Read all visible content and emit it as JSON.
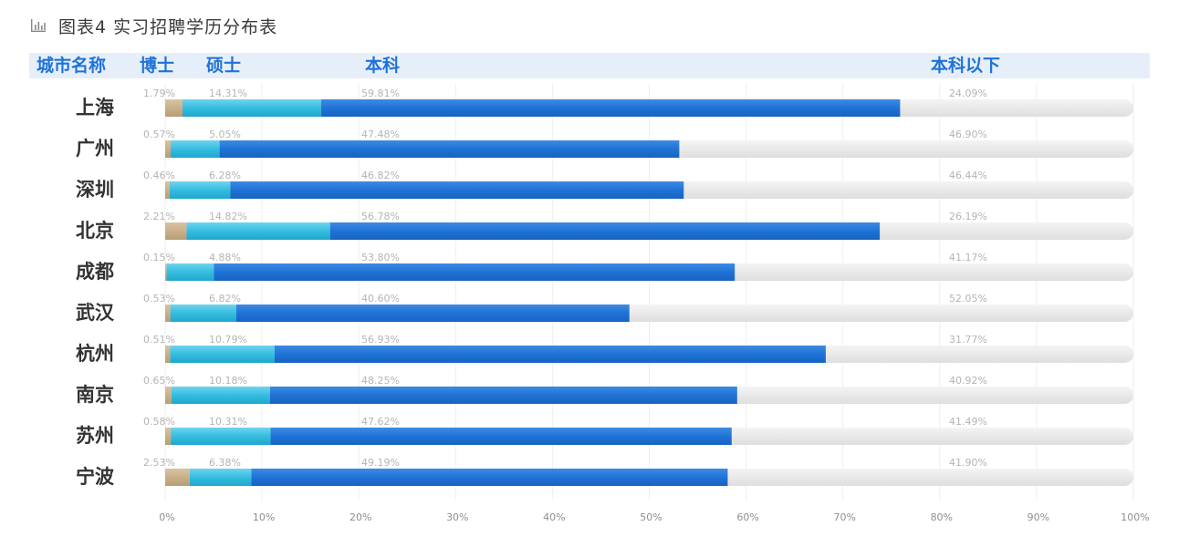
{
  "title": "图表4 实习招聘学历分布表",
  "icon": "bar-chart-icon",
  "headers": {
    "city": "城市名称",
    "phd": "博士",
    "master": "硕士",
    "bachelor": "本科",
    "below": "本科以下"
  },
  "colors": {
    "phd": "#c9b08a",
    "master": "#35bde0",
    "bachelor": "#1f73d6",
    "below": "#e9e9e9",
    "header_text": "#1f73d6",
    "header_band": "#e6eefa"
  },
  "chart_data": {
    "type": "bar",
    "orientation": "horizontal",
    "stacked": true,
    "title": "图表4 实习招聘学历分布表",
    "xlim": [
      0,
      100
    ],
    "xticks": [
      "0%",
      "10%",
      "20%",
      "30%",
      "40%",
      "50%",
      "60%",
      "70%",
      "80%",
      "90%",
      "100%"
    ],
    "categories": [
      "上海",
      "广州",
      "深圳",
      "北京",
      "成都",
      "武汉",
      "杭州",
      "南京",
      "苏州",
      "宁波"
    ],
    "series": [
      {
        "name": "博士",
        "values": [
          1.79,
          0.57,
          0.46,
          2.21,
          0.15,
          0.53,
          0.51,
          0.65,
          0.58,
          2.53
        ],
        "labels": [
          "1.79%",
          "0.57%",
          "0.46%",
          "2.21%",
          "0.15%",
          "0.53%",
          "0.51%",
          "0.65%",
          "0.58%",
          "2.53%"
        ]
      },
      {
        "name": "硕士",
        "values": [
          14.31,
          5.05,
          6.28,
          14.82,
          4.88,
          6.82,
          10.79,
          10.18,
          10.31,
          6.38
        ],
        "labels": [
          "14.31%",
          "5.05%",
          "6.28%",
          "14.82%",
          "4.88%",
          "6.82%",
          "10.79%",
          "10.18%",
          "10.31%",
          "6.38%"
        ]
      },
      {
        "name": "本科",
        "values": [
          59.81,
          47.48,
          46.82,
          56.78,
          53.8,
          40.6,
          56.93,
          48.25,
          47.62,
          49.19
        ],
        "labels": [
          "59.81%",
          "47.48%",
          "46.82%",
          "56.78%",
          "53.80%",
          "40.60%",
          "56.93%",
          "48.25%",
          "47.62%",
          "49.19%"
        ]
      },
      {
        "name": "本科以下",
        "values": [
          24.09,
          46.9,
          46.44,
          26.19,
          41.17,
          52.05,
          31.77,
          40.92,
          41.49,
          41.9
        ],
        "labels": [
          "24.09%",
          "46.90%",
          "46.44%",
          "26.19%",
          "41.17%",
          "52.05%",
          "31.77%",
          "40.92%",
          "41.49%",
          "41.90%"
        ]
      }
    ]
  }
}
